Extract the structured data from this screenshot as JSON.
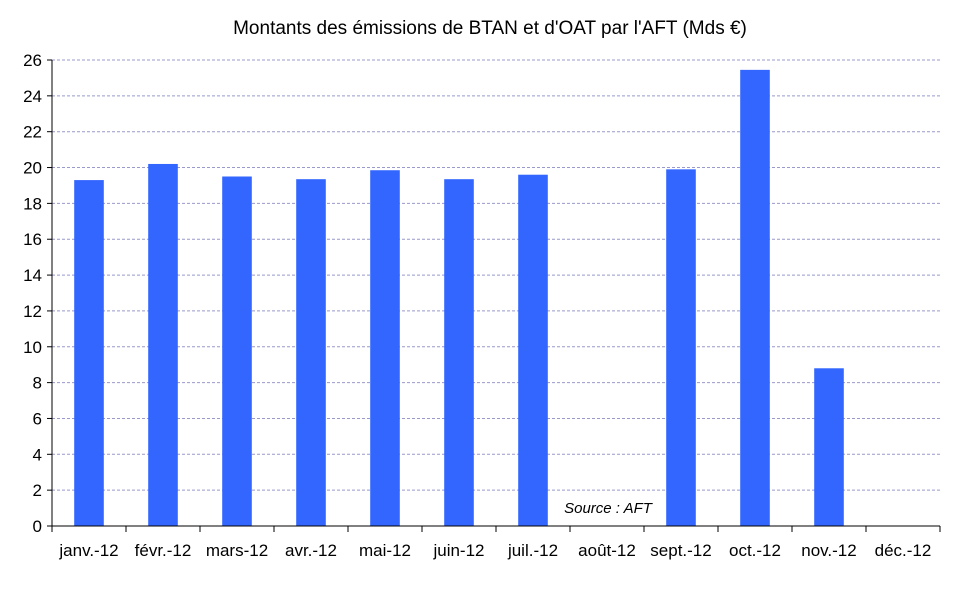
{
  "chart_data": {
    "type": "bar",
    "title": "Montants des émissions de BTAN et d'OAT par l'AFT (Mds €)",
    "xlabel": "",
    "ylabel": "",
    "categories": [
      "janv.-12",
      "févr.-12",
      "mars-12",
      "avr.-12",
      "mai-12",
      "juin-12",
      "juil.-12",
      "août-12",
      "sept.-12",
      "oct.-12",
      "nov.-12",
      "déc.-12"
    ],
    "values": [
      19.3,
      20.2,
      19.5,
      19.35,
      19.85,
      19.35,
      19.6,
      0,
      19.9,
      25.45,
      8.8,
      0
    ],
    "ylim": [
      0,
      26
    ],
    "yticks": [
      0,
      2,
      4,
      6,
      8,
      10,
      12,
      14,
      16,
      18,
      20,
      22,
      24,
      26
    ],
    "grid": true,
    "legend": "none",
    "annotation": "Source : AFT",
    "bar_color": "#3366FF",
    "grid_color": "#9999CC"
  }
}
